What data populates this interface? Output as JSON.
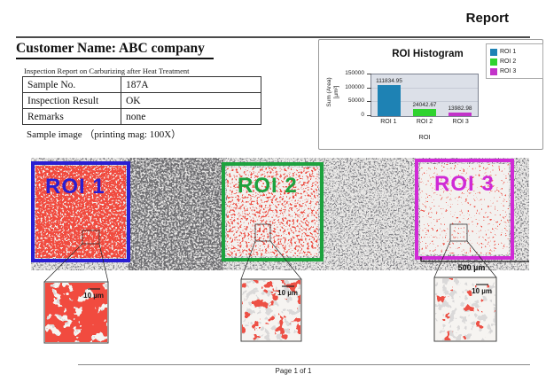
{
  "page": {
    "report_label": "Report",
    "footer": "Page 1 of 1"
  },
  "header": {
    "customer_name": "Customer Name: ABC company",
    "report_subtitle": "Inspection Report on Carburizing after Heat Treatment"
  },
  "info_table": {
    "rows": [
      {
        "label": "Sample No.",
        "value": "187A"
      },
      {
        "label": "Inspection Result",
        "value": "OK"
      },
      {
        "label": "Remarks",
        "value": "none"
      }
    ]
  },
  "sample_image": {
    "caption": "Sample image （printing mag: 100X）",
    "scale_bar": "500 µm",
    "rois": [
      {
        "label": "ROI 1",
        "color": "#2a1ed2"
      },
      {
        "label": "ROI 2",
        "color": "#1da23e"
      },
      {
        "label": "ROI 3",
        "color": "#d02ad6"
      }
    ],
    "insets": [
      {
        "scale_label": "10 µm"
      },
      {
        "scale_label": "10 µm"
      },
      {
        "scale_label": "10 µm"
      }
    ]
  },
  "chart_data": {
    "type": "bar",
    "title": "ROI Histogram",
    "categories": [
      "ROI 1",
      "ROI 2",
      "ROI 3"
    ],
    "values": [
      111834.95,
      24042.67,
      13982.98
    ],
    "value_labels": [
      "111834.95",
      "24042.67",
      "13982.98"
    ],
    "bar_colors": [
      "#1e82b4",
      "#2fd32f",
      "#c233c9"
    ],
    "xlabel": "ROI",
    "ylabel": "Sum (Area)\n[µm²]",
    "ylim": [
      0,
      150000
    ],
    "yticks": [
      0,
      50000,
      100000,
      150000
    ],
    "grid": true,
    "plot_bg": "#dce0e8",
    "legend_position": "outside-top-right",
    "legend": [
      {
        "label": "ROI 1",
        "color": "#1e82b4"
      },
      {
        "label": "ROI 2",
        "color": "#2fd32f"
      },
      {
        "label": "ROI 3",
        "color": "#c233c9"
      }
    ]
  }
}
